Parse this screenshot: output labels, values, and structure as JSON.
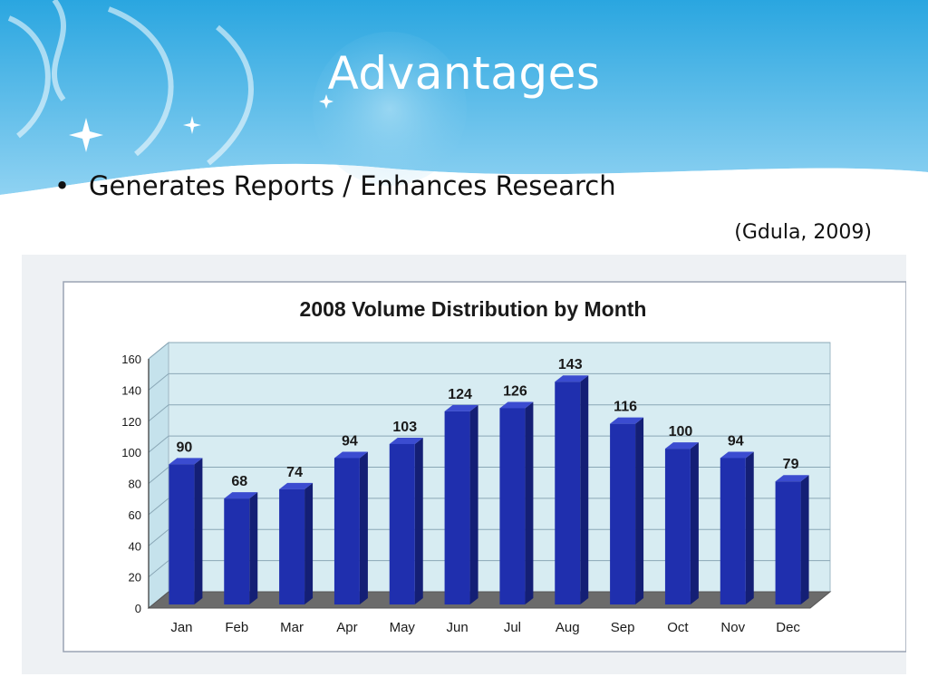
{
  "slide": {
    "title": "Advantages",
    "bullets": [
      "Generates Reports / Enhances Research"
    ],
    "citation": "(Gdula, 2009)"
  },
  "colors": {
    "header_top": "#2aa6e0",
    "header_bottom": "#9fd8f4",
    "bar_front": "#1f2fae",
    "bar_side": "#141f75",
    "bar_top": "#3b4cd0",
    "wall": "#d7ecf2",
    "gridline": "#8aa7b6"
  },
  "chart_data": {
    "type": "bar",
    "title": "2008 Volume Distribution by Month",
    "categories": [
      "Jan",
      "Feb",
      "Mar",
      "Apr",
      "May",
      "Jun",
      "Jul",
      "Aug",
      "Sep",
      "Oct",
      "Nov",
      "Dec"
    ],
    "values": [
      90,
      68,
      74,
      94,
      103,
      124,
      126,
      143,
      116,
      100,
      94,
      79
    ],
    "yticks": [
      0,
      20,
      40,
      60,
      80,
      100,
      120,
      140,
      160
    ],
    "ylim": [
      0,
      160
    ],
    "grid": true,
    "three_d": true,
    "legend": "none"
  }
}
